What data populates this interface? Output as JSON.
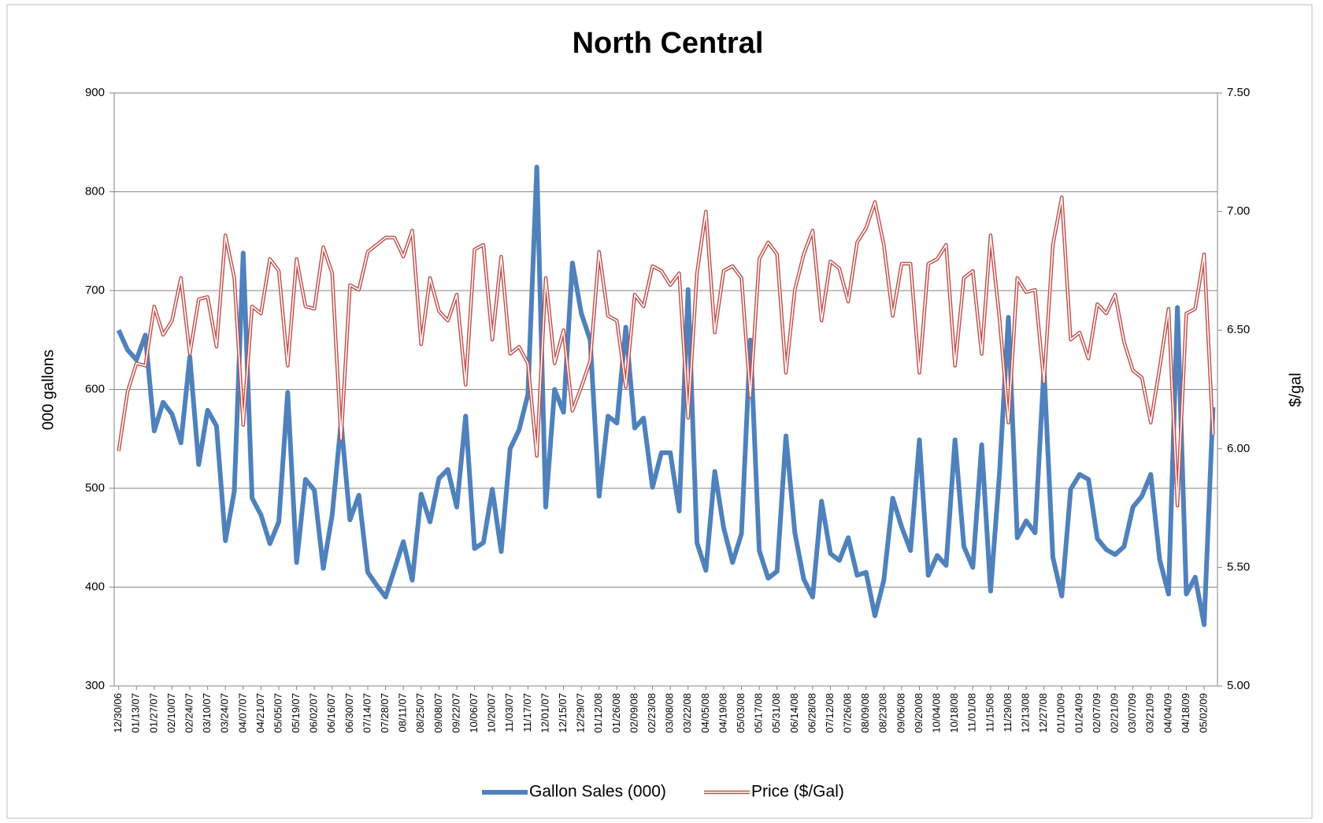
{
  "chart_data": {
    "type": "line",
    "title": "North Central",
    "y_label": "000 gallons",
    "y2_label": "$/gal",
    "categories": [
      "12/30/06",
      null,
      "01/13/07",
      null,
      "01/27/07",
      null,
      "02/10/07",
      null,
      "02/24/07",
      null,
      "03/10/07",
      null,
      "03/24/07",
      null,
      "04/07/07",
      null,
      "04/21/07",
      null,
      "05/05/07",
      null,
      "05/19/07",
      null,
      "06/02/07",
      null,
      "06/16/07",
      null,
      "06/30/07",
      null,
      "07/14/07",
      null,
      "07/28/07",
      null,
      "08/11/07",
      null,
      "08/25/07",
      null,
      "09/08/07",
      null,
      "09/22/07",
      null,
      "10/06/07",
      null,
      "10/20/07",
      null,
      "11/03/07",
      null,
      "11/17/07",
      null,
      "12/01/07",
      null,
      "12/15/07",
      null,
      "12/29/07",
      null,
      "01/12/08",
      null,
      "01/26/08",
      null,
      "02/09/08",
      null,
      "02/23/08",
      null,
      "03/08/08",
      null,
      "03/22/08",
      null,
      "04/05/08",
      null,
      "04/19/08",
      null,
      "05/03/08",
      null,
      "05/17/08",
      null,
      "05/31/08",
      null,
      "06/14/08",
      null,
      "06/28/08",
      null,
      "07/12/08",
      null,
      "07/26/08",
      null,
      "08/09/08",
      null,
      "08/23/08",
      null,
      "09/06/08",
      null,
      "09/20/08",
      null,
      "10/04/08",
      null,
      "10/18/08",
      null,
      "11/01/08",
      null,
      "11/15/08",
      null,
      "11/29/08",
      null,
      "12/13/08",
      null,
      "12/27/08",
      null,
      "01/10/09",
      null,
      "01/24/09",
      null,
      "02/07/09",
      null,
      "02/21/09",
      null,
      "03/07/09",
      null,
      "03/21/09",
      null,
      "04/04/09",
      null,
      "04/18/09",
      null,
      "05/02/09",
      null
    ],
    "series": [
      {
        "name": "Gallon Sales (000)",
        "color": "#4f81bd",
        "axis": "y",
        "values": [
          660,
          640,
          630,
          655,
          558,
          587,
          575,
          546,
          633,
          524,
          579,
          563,
          447,
          497,
          738,
          490,
          473,
          444,
          466,
          597,
          425,
          509,
          498,
          419,
          473,
          567,
          468,
          493,
          415,
          402,
          390,
          418,
          446,
          407,
          494,
          466,
          510,
          519,
          481,
          573,
          439,
          445,
          499,
          436,
          540,
          559,
          595,
          825,
          481,
          600,
          577,
          728,
          677,
          650,
          492,
          573,
          566,
          663,
          561,
          571,
          501,
          536,
          536,
          477,
          701,
          445,
          417,
          517,
          460,
          425,
          454,
          650,
          437,
          409,
          416,
          553,
          455,
          408,
          390,
          487,
          434,
          427,
          450,
          412,
          415,
          371,
          407,
          490,
          461,
          437,
          549,
          412,
          432,
          422,
          549,
          441,
          420,
          544,
          396,
          515,
          673,
          450,
          467,
          455,
          622,
          430,
          391,
          499,
          514,
          509,
          449,
          438,
          433,
          441,
          481,
          492,
          514,
          428,
          393,
          683,
          393,
          410,
          362,
          582
        ]
      },
      {
        "name": "Price ($/Gal)",
        "color": "#c0504d",
        "axis": "y2",
        "values": [
          5.99,
          6.24,
          6.36,
          6.35,
          6.6,
          6.48,
          6.54,
          6.72,
          6.4,
          6.63,
          6.64,
          6.43,
          6.9,
          6.72,
          6.1,
          6.6,
          6.57,
          6.8,
          6.75,
          6.35,
          6.8,
          6.6,
          6.59,
          6.85,
          6.74,
          6.04,
          6.69,
          6.67,
          6.83,
          6.86,
          6.89,
          6.89,
          6.81,
          6.92,
          6.44,
          6.72,
          6.58,
          6.54,
          6.65,
          6.27,
          6.84,
          6.86,
          6.46,
          6.81,
          6.4,
          6.43,
          6.36,
          5.97,
          6.72,
          6.36,
          6.5,
          6.16,
          6.26,
          6.37,
          6.83,
          6.56,
          6.54,
          6.26,
          6.65,
          6.6,
          6.77,
          6.75,
          6.69,
          6.74,
          6.13,
          6.74,
          7.0,
          6.49,
          6.75,
          6.77,
          6.72,
          6.22,
          6.8,
          6.87,
          6.82,
          6.32,
          6.67,
          6.82,
          6.92,
          6.54,
          6.79,
          6.76,
          6.62,
          6.87,
          6.93,
          7.04,
          6.86,
          6.56,
          6.78,
          6.78,
          6.32,
          6.78,
          6.8,
          6.86,
          6.35,
          6.72,
          6.75,
          6.4,
          6.9,
          6.55,
          6.11,
          6.72,
          6.66,
          6.67,
          6.28,
          6.86,
          7.06,
          6.46,
          6.49,
          6.38,
          6.61,
          6.57,
          6.65,
          6.45,
          6.33,
          6.3,
          6.11,
          6.34,
          6.59,
          5.76,
          6.57,
          6.59,
          6.82,
          6.06
        ]
      }
    ],
    "ylim": [
      300,
      900
    ],
    "yticks": [
      300,
      400,
      500,
      600,
      700,
      800,
      900
    ],
    "y2lim": [
      5,
      7.5
    ],
    "y2ticks": [
      {
        "value": 5,
        "label": "5.00"
      },
      {
        "value": 5.5,
        "label": "5.50"
      },
      {
        "value": 6,
        "label": "6.00"
      },
      {
        "value": 6.5,
        "label": "6.50"
      },
      {
        "value": 7,
        "label": "7.00"
      },
      {
        "value": 7.5,
        "label": "7.50"
      }
    ],
    "grid": true,
    "legend": "bottom"
  }
}
